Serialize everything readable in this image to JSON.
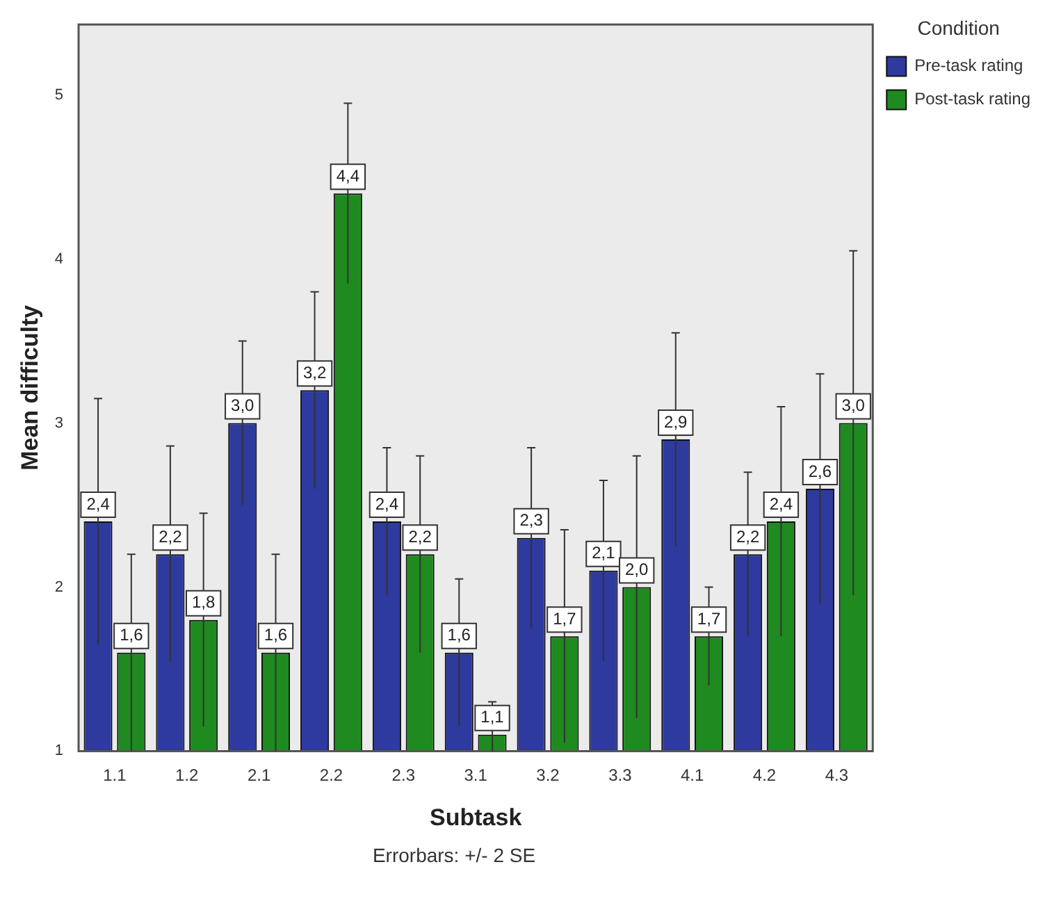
{
  "chart_data": {
    "type": "bar",
    "xlabel": "Subtask",
    "ylabel": "Mean difficulty",
    "legend_title": "Condition",
    "legend": "top right",
    "grid": false,
    "categories": [
      "1.1",
      "1.2",
      "2.1",
      "2.2",
      "2.3",
      "3.1",
      "3.2",
      "3.3",
      "4.1",
      "4.2",
      "4.3"
    ],
    "ylim": [
      1,
      5.43
    ],
    "yticks": [
      1,
      2,
      3,
      4,
      5
    ],
    "series": [
      {
        "name": "Pre-task rating",
        "color": "#2e3a9e",
        "values": [
          2.4,
          2.2,
          3.0,
          3.2,
          2.4,
          1.6,
          2.3,
          2.1,
          2.9,
          2.2,
          2.6
        ],
        "errors": [
          0.75,
          0.66,
          0.5,
          0.6,
          0.45,
          0.45,
          0.55,
          0.55,
          0.65,
          0.5,
          0.7
        ],
        "value_labels": [
          "2,4",
          "2,2",
          "3,0",
          "3,2",
          "2,4",
          "1,6",
          "2,3",
          "2,1",
          "2,9",
          "2,2",
          "2,6"
        ]
      },
      {
        "name": "Post-task rating",
        "color": "#1f8a1f",
        "values": [
          1.6,
          1.8,
          1.6,
          4.4,
          2.2,
          1.1,
          1.7,
          2.0,
          1.7,
          2.4,
          3.0
        ],
        "errors": [
          0.6,
          0.65,
          0.6,
          0.55,
          0.6,
          [
            1,
            1.3
          ],
          0.65,
          0.8,
          0.3,
          0.7,
          1.05
        ],
        "value_labels": [
          "1,6",
          "1,8",
          "1,6",
          "4,4",
          "2,2",
          "1,1",
          "1,7",
          "2,0",
          "1,7",
          "2,4",
          "3,0"
        ]
      }
    ],
    "annotations": [
      "Errorbars: +/- 2 SE"
    ]
  }
}
